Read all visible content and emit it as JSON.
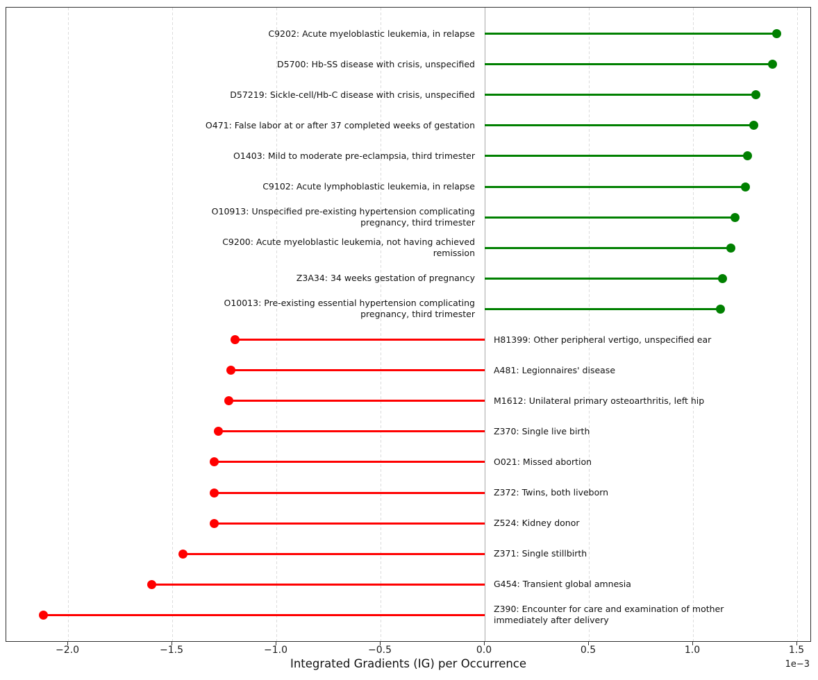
{
  "figure": {
    "offset_label": "1e−3",
    "colors": {
      "positive": "#008000",
      "negative": "#ff0000",
      "grid": "#dcdcdc",
      "zero_line": "#a8a8a8",
      "frame": "#2e2e2e"
    }
  },
  "chart_data": {
    "type": "bar",
    "variant": "horizontal-lollipop",
    "title": "",
    "xlabel": "Integrated Gradients (IG) per Occurrence",
    "ylabel": "",
    "x_unit_multiplier": "1e-3",
    "xlim": [
      -2.3,
      1.57
    ],
    "xticks": [
      -2.0,
      -1.5,
      -1.0,
      -0.5,
      0.0,
      0.5,
      1.0,
      1.5
    ],
    "xtick_labels": [
      "−2.0",
      "−1.5",
      "−1.0",
      "−0.5",
      "0.0",
      "0.5",
      "1.0",
      "1.5"
    ],
    "grid": "vertical-dashed",
    "legend": "none",
    "categories": [
      "C9202: Acute myeloblastic leukemia, in relapse",
      "D5700: Hb-SS disease with crisis, unspecified",
      "D57219: Sickle-cell/Hb-C disease with crisis, unspecified",
      "O471: False labor at or after 37 completed weeks of gestation",
      "O1403: Mild to moderate pre-eclampsia, third trimester",
      "C9102: Acute lymphoblastic leukemia, in relapse",
      "O10913: Unspecified pre-existing hypertension complicating pregnancy, third trimester",
      "C9200: Acute myeloblastic leukemia, not having achieved remission",
      "Z3A34: 34 weeks gestation of pregnancy",
      "O10013: Pre-existing essential hypertension complicating pregnancy, third trimester",
      "H81399: Other peripheral vertigo, unspecified ear",
      "A481: Legionnaires' disease",
      "M1612: Unilateral primary osteoarthritis, left hip",
      "Z370: Single live birth",
      "O021: Missed abortion",
      "Z372: Twins, both liveborn",
      "Z524: Kidney donor",
      "Z371: Single stillbirth",
      "G454: Transient global amnesia",
      "Z390: Encounter for care and examination of mother immediately after delivery"
    ],
    "values": [
      1.4,
      1.38,
      1.3,
      1.29,
      1.26,
      1.25,
      1.2,
      1.18,
      1.14,
      1.13,
      -1.2,
      -1.22,
      -1.23,
      -1.28,
      -1.3,
      -1.3,
      -1.3,
      -1.45,
      -1.6,
      -2.12
    ]
  }
}
